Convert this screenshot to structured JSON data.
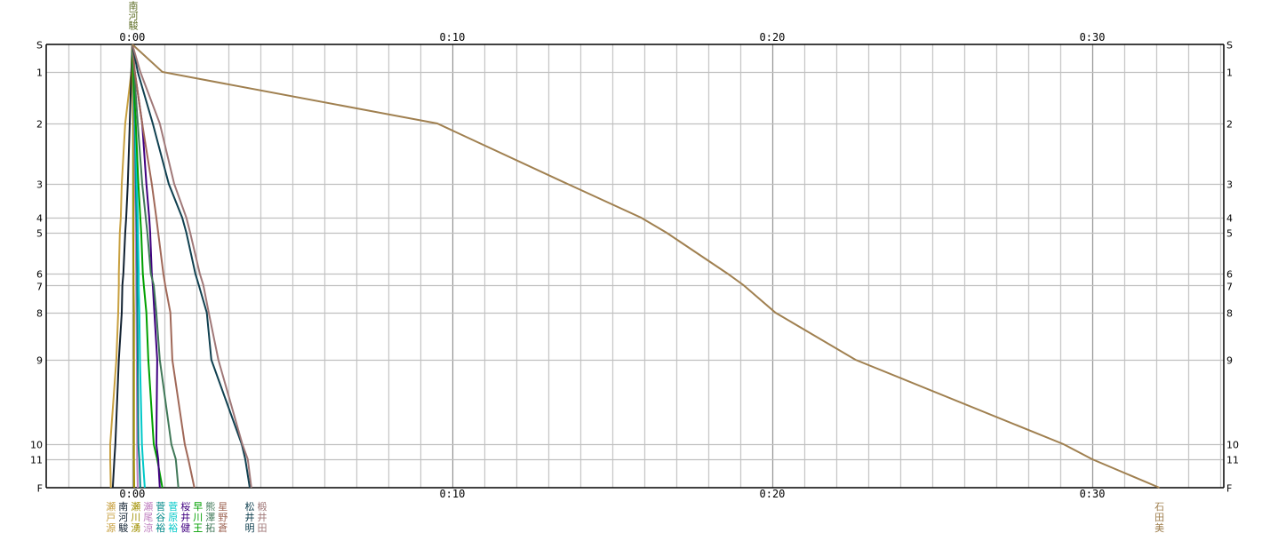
{
  "chart_data": {
    "type": "line",
    "title": "",
    "xlabel": "",
    "ylabel": "",
    "x_unit": "minutes",
    "xlim": [
      -2.69,
      34.11
    ],
    "x_ticks": [
      {
        "value": 0,
        "label": "0:00"
      },
      {
        "value": 10,
        "label": "0:10"
      },
      {
        "value": 20,
        "label": "0:20"
      },
      {
        "value": 30,
        "label": "0:30"
      }
    ],
    "minor_grid_minutes": 1,
    "grid": true,
    "controls": [
      "S",
      "1",
      "2",
      "3",
      "4",
      "5",
      "6",
      "7",
      "8",
      "9",
      "10",
      "11",
      "F"
    ],
    "top_label": "南河駿",
    "series": [
      {
        "name": "瀬戸源",
        "color": "#c8a040",
        "values": [
          0,
          -0.03,
          -0.22,
          -0.33,
          -0.36,
          -0.39,
          -0.42,
          -0.42,
          -0.44,
          -0.5,
          -0.69,
          -0.69,
          -0.67
        ]
      },
      {
        "name": "南河駿",
        "color": "#102030",
        "values": [
          0,
          -0.03,
          -0.08,
          -0.14,
          -0.19,
          -0.22,
          -0.28,
          -0.31,
          -0.33,
          -0.42,
          -0.53,
          -0.56,
          -0.61
        ]
      },
      {
        "name": "瀬川湧",
        "color": "#a09000",
        "values": [
          0,
          0,
          0.03,
          0.03,
          0.03,
          0.03,
          0.04,
          0.04,
          0.05,
          0.05,
          0.05,
          0.05,
          0.06
        ]
      },
      {
        "name": "瀬尾涼",
        "color": "#c080c0",
        "values": [
          0,
          0.03,
          0.06,
          0.08,
          0.1,
          0.1,
          0.12,
          0.12,
          0.13,
          0.14,
          0.15,
          0.15,
          0.17
        ]
      },
      {
        "name": "菅谷裕",
        "color": "#008888",
        "values": [
          0,
          0.03,
          0.08,
          0.11,
          0.13,
          0.14,
          0.15,
          0.15,
          0.16,
          0.17,
          0.19,
          0.22,
          0.25
        ]
      },
      {
        "name": "菅原裕",
        "color": "#00c8c8",
        "values": [
          0,
          0.03,
          0.1,
          0.14,
          0.17,
          0.18,
          0.2,
          0.2,
          0.22,
          0.24,
          0.3,
          0.33,
          0.39
        ]
      },
      {
        "name": "早川王",
        "color": "#00a000",
        "values": [
          0,
          0.03,
          0.11,
          0.19,
          0.25,
          0.28,
          0.33,
          0.36,
          0.44,
          0.5,
          0.67,
          0.78,
          0.94
        ]
      },
      {
        "name": "桜井健",
        "color": "#400080",
        "values": [
          0,
          0.08,
          0.31,
          0.44,
          0.53,
          0.56,
          0.61,
          0.64,
          0.69,
          0.78,
          0.75,
          0.81,
          0.86
        ]
      },
      {
        "name": "熊澤拓",
        "color": "#407858",
        "values": [
          0,
          0.06,
          0.17,
          0.31,
          0.42,
          0.47,
          0.58,
          0.67,
          0.75,
          0.86,
          1.22,
          1.36,
          1.44
        ]
      },
      {
        "name": "星野蒼",
        "color": "#a06858",
        "values": [
          0,
          0.08,
          0.31,
          0.61,
          0.75,
          0.81,
          0.97,
          1.03,
          1.19,
          1.25,
          1.64,
          1.75,
          1.94
        ]
      },
      {
        "name": "松井明",
        "color": "#104050",
        "values": [
          0,
          0.17,
          0.64,
          1.14,
          1.56,
          1.69,
          1.97,
          2.08,
          2.33,
          2.47,
          3.42,
          3.53,
          3.67
        ]
      },
      {
        "name": "椴井田",
        "color": "#a07878",
        "values": [
          0,
          0.25,
          0.86,
          1.31,
          1.69,
          1.81,
          2.11,
          2.22,
          2.39,
          2.69,
          3.44,
          3.61,
          3.72
        ]
      },
      {
        "name": "石田美",
        "color": "#a08050",
        "values": [
          0,
          0.94,
          9.53,
          13.6,
          15.9,
          16.7,
          18.6,
          19.1,
          20.1,
          22.6,
          29.1,
          30.0,
          32.1
        ]
      }
    ]
  }
}
